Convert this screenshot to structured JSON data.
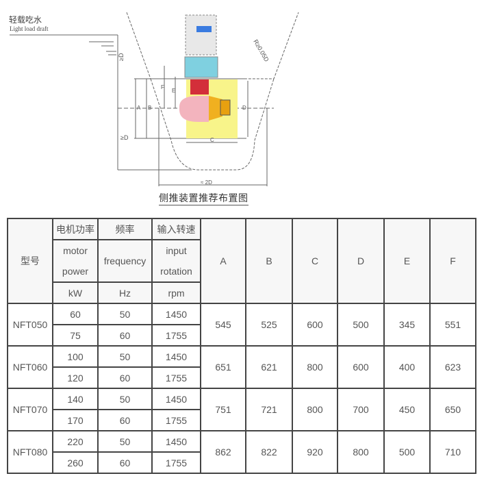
{
  "figure": {
    "label_cn": "轻载吃水",
    "label_en": "Light load draft",
    "caption": "侧推装置推荐布置图",
    "dims": [
      "≥D",
      "≥D",
      "A",
      "B",
      "C",
      "D",
      "E",
      "F",
      "≈ 2D",
      "R≥0.05D"
    ]
  },
  "table": {
    "header": {
      "model": "型号",
      "power_cn": "电机功率",
      "freq_cn": "频率",
      "speed_cn": "输入转速",
      "power_en1": "motor",
      "power_en2": "power",
      "freq_en": "frequency",
      "speed_en1": "input",
      "speed_en2": "rotation",
      "power_unit": "kW",
      "freq_unit": "Hz",
      "speed_unit": "rpm",
      "cols": [
        "A",
        "B",
        "C",
        "D",
        "E",
        "F"
      ]
    },
    "rows": [
      {
        "model": "NFT050",
        "sub": [
          [
            "60",
            "50",
            "1450"
          ],
          [
            "75",
            "60",
            "1755"
          ]
        ],
        "dims": [
          "545",
          "525",
          "600",
          "500",
          "345",
          "551"
        ]
      },
      {
        "model": "NFT060",
        "sub": [
          [
            "100",
            "50",
            "1450"
          ],
          [
            "120",
            "60",
            "1755"
          ]
        ],
        "dims": [
          "651",
          "621",
          "800",
          "600",
          "400",
          "623"
        ]
      },
      {
        "model": "NFT070",
        "sub": [
          [
            "140",
            "50",
            "1450"
          ],
          [
            "170",
            "60",
            "1755"
          ]
        ],
        "dims": [
          "751",
          "721",
          "800",
          "700",
          "450",
          "650"
        ]
      },
      {
        "model": "NFT080",
        "sub": [
          [
            "220",
            "50",
            "1450"
          ],
          [
            "260",
            "60",
            "1755"
          ]
        ],
        "dims": [
          "862",
          "822",
          "920",
          "800",
          "500",
          "710"
        ]
      }
    ]
  }
}
